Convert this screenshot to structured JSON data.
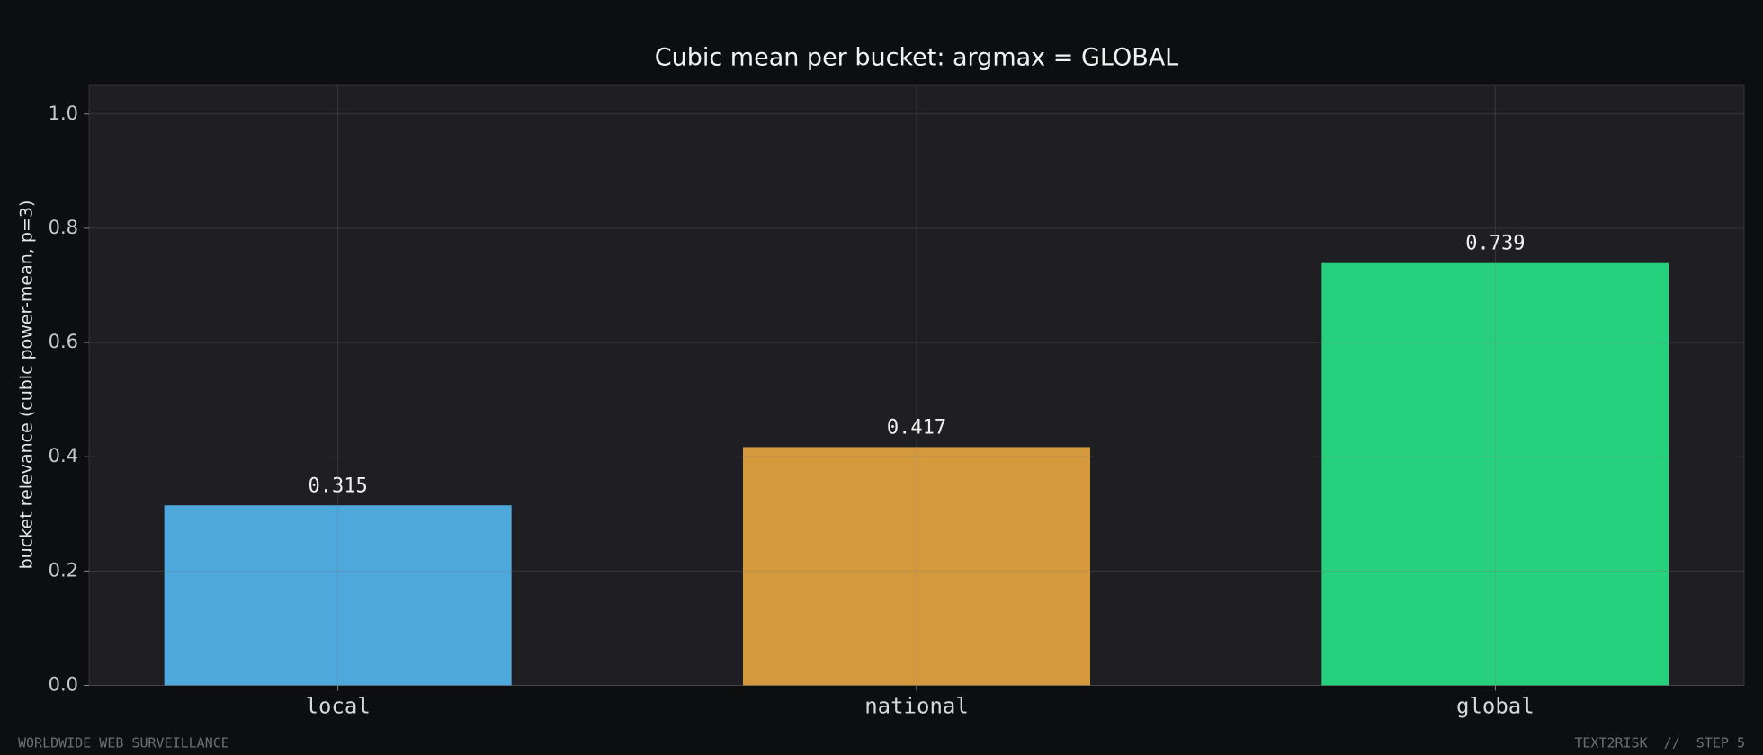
{
  "chart_data": {
    "type": "bar",
    "title": "Cubic mean per bucket: argmax = GLOBAL",
    "y_label": "bucket relevance (cubic power-mean, p=3)",
    "categories": [
      "local",
      "national",
      "global"
    ],
    "values": [
      0.315,
      0.417,
      0.739
    ],
    "colors": [
      "#4ea8dc",
      "#d4993d",
      "#27d07d"
    ],
    "ylim": [
      0,
      1.05
    ],
    "yticks": [
      {
        "value": 0,
        "label": "0.0"
      },
      0.2,
      0.4,
      0.6,
      0.8,
      {
        "value": 1,
        "label": "1.0"
      }
    ],
    "grid": true
  },
  "footer": {
    "left": "WORLDWIDE WEB SURVEILLANCE",
    "right": "TEXT2RISK  //  STEP 5"
  }
}
